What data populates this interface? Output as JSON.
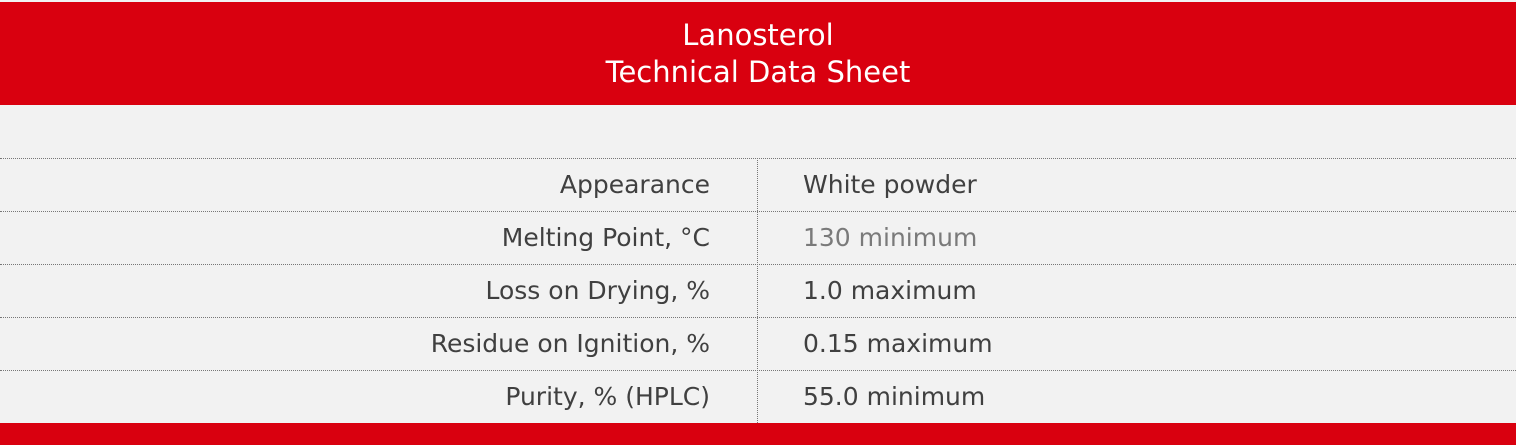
{
  "header": {
    "title": [
      "Lanosterol",
      "Technical Data Sheet"
    ]
  },
  "table": {
    "rows": [
      [
        "Appearance",
        "White powder"
      ],
      [
        "Melting Point, °C",
        "130 minimum"
      ],
      [
        "Loss on Drying, %",
        "1.0 maximum"
      ],
      [
        "Residue on Ignition, %",
        "0.15 maximum"
      ],
      [
        "Purity, % (HPLC)",
        "55.0 minimum"
      ]
    ]
  }
}
